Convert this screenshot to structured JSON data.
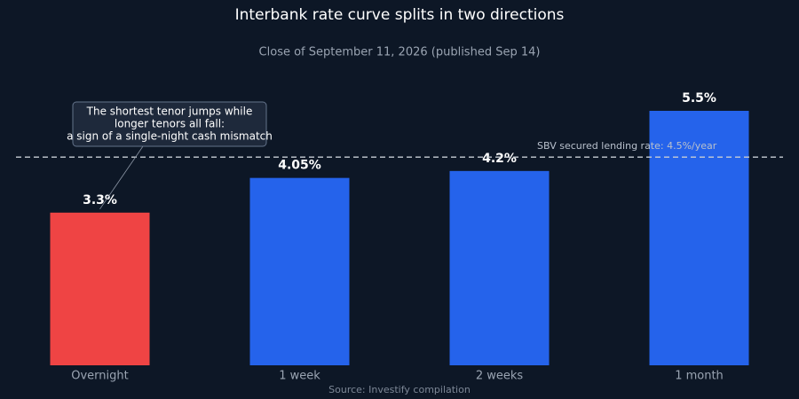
{
  "chart_data": {
    "type": "bar",
    "title": "Interbank rate curve splits in two directions",
    "subtitle": "Close of September 11, 2026 (published Sep 14)",
    "categories": [
      "Overnight",
      "1 week",
      "2 weeks",
      "1 month"
    ],
    "values": [
      3.3,
      4.05,
      4.2,
      5.5
    ],
    "value_labels": [
      "3.3%",
      "4.05%",
      "4.2%",
      "5.5%"
    ],
    "colors": [
      "#ef4444",
      "#2563eb",
      "#2563eb",
      "#2563eb"
    ],
    "reference_line": {
      "value": 4.5,
      "label": "SBV secured lending rate: 4.5%/year"
    },
    "annotation": {
      "lines": [
        "The shortest tenor jumps while",
        "longer tenors all fall:",
        "a sign of a single-night cash mismatch"
      ],
      "category_index": 0
    },
    "source": "Source: Investify compilation"
  }
}
